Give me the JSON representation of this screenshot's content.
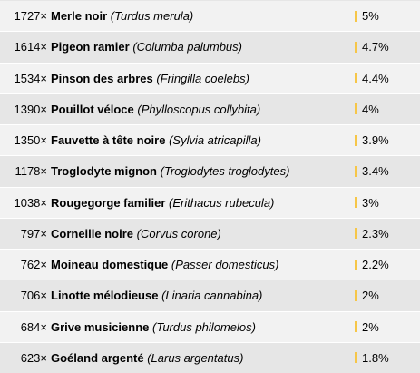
{
  "rows": [
    {
      "count": "1727×",
      "common": "Merle noir",
      "latin": "(Turdus merula)",
      "pct": "5%"
    },
    {
      "count": "1614×",
      "common": "Pigeon ramier",
      "latin": "(Columba palumbus)",
      "pct": "4.7%"
    },
    {
      "count": "1534×",
      "common": "Pinson des arbres",
      "latin": "(Fringilla coelebs)",
      "pct": "4.4%"
    },
    {
      "count": "1390×",
      "common": "Pouillot véloce",
      "latin": "(Phylloscopus collybita)",
      "pct": "4%"
    },
    {
      "count": "1350×",
      "common": "Fauvette à tête noire",
      "latin": "(Sylvia atricapilla)",
      "pct": "3.9%"
    },
    {
      "count": "1178×",
      "common": "Troglodyte mignon",
      "latin": "(Troglodytes troglodytes)",
      "pct": "3.4%"
    },
    {
      "count": "1038×",
      "common": "Rougegorge familier",
      "latin": "(Erithacus rubecula)",
      "pct": "3%"
    },
    {
      "count": "797×",
      "common": "Corneille noire",
      "latin": "(Corvus corone)",
      "pct": "2.3%"
    },
    {
      "count": "762×",
      "common": "Moineau domestique",
      "latin": "(Passer domesticus)",
      "pct": "2.2%"
    },
    {
      "count": "706×",
      "common": "Linotte mélodieuse",
      "latin": "(Linaria cannabina)",
      "pct": "2%"
    },
    {
      "count": "684×",
      "common": "Grive musicienne",
      "latin": "(Turdus philomelos)",
      "pct": "2%"
    },
    {
      "count": "623×",
      "common": "Goéland argenté",
      "latin": "(Larus argentatus)",
      "pct": "1.8%"
    }
  ],
  "colors": {
    "bar": "#f6c648",
    "row_odd": "#f2f2f2",
    "row_even": "#e6e6e6"
  }
}
